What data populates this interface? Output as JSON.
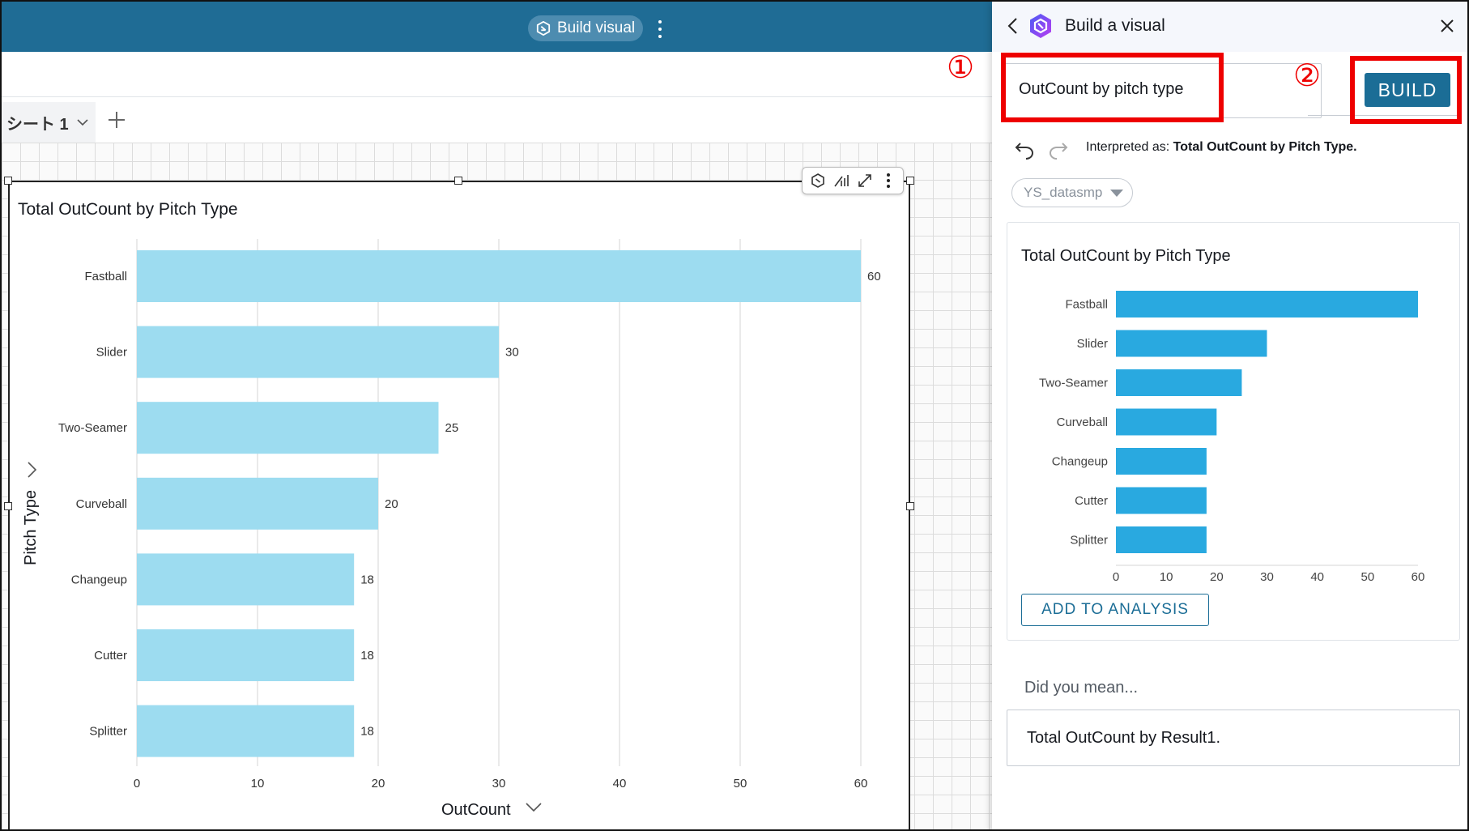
{
  "topbar": {
    "build_visual_label": "Build visual",
    "more_icon": "kebab-vertical-icon"
  },
  "sheet_tab": {
    "label": "シート 1"
  },
  "visual": {
    "title": "Total OutCount by Pitch Type",
    "x_axis_title": "OutCount",
    "y_axis_title": "Pitch Type",
    "tool_icons": [
      "q-icon",
      "analysis-icon",
      "expand-icon",
      "kebab-vertical-icon"
    ]
  },
  "panel": {
    "title": "Build a visual",
    "query_value": "OutCount by pitch type",
    "build_label": "BUILD",
    "marker_1": "①",
    "marker_2": "②",
    "interpreted_prefix": "Interpreted as:",
    "interpreted_value": "Total OutCount by Pitch Type.",
    "dataset": "YS_datasmp",
    "preview_title": "Total OutCount by Pitch Type",
    "add_label": "ADD TO ANALYSIS",
    "did_you_mean": "Did you mean...",
    "suggestion": "Total OutCount by Result1."
  },
  "colors": {
    "header_bar": "#1f6c95",
    "main_bar": "#9ddcf0",
    "preview_bar": "#29a9e0",
    "build_button": "#1b6d96",
    "annotation_red": "#ee0000"
  },
  "chart_data": [
    {
      "type": "bar",
      "orientation": "horizontal",
      "title": "Total OutCount by Pitch Type",
      "categories": [
        "Fastball",
        "Slider",
        "Two-Seamer",
        "Curveball",
        "Changeup",
        "Cutter",
        "Splitter"
      ],
      "values": [
        60,
        30,
        25,
        20,
        18,
        18,
        18
      ],
      "xlabel": "OutCount",
      "ylabel": "Pitch Type",
      "xlim": [
        0,
        60
      ],
      "xticks": [
        0,
        10,
        20,
        30,
        40,
        50,
        60
      ],
      "data_labels": true,
      "grid": true
    },
    {
      "type": "bar",
      "orientation": "horizontal",
      "title": "Total OutCount by Pitch Type",
      "categories": [
        "Fastball",
        "Slider",
        "Two-Seamer",
        "Curveball",
        "Changeup",
        "Cutter",
        "Splitter"
      ],
      "values": [
        60,
        30,
        25,
        20,
        18,
        18,
        18
      ],
      "xlabel": "",
      "ylabel": "",
      "xlim": [
        0,
        60
      ],
      "xticks": [
        0,
        10,
        20,
        30,
        40,
        50,
        60
      ],
      "data_labels": false,
      "grid": false
    }
  ]
}
